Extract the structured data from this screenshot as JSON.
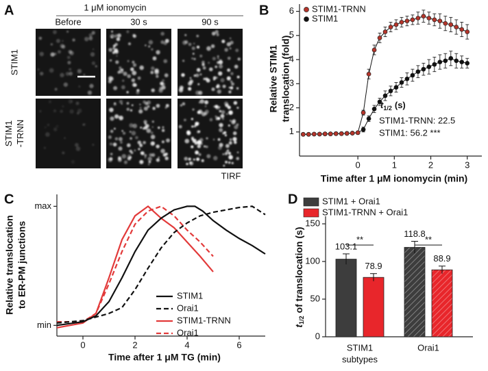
{
  "panel_a": {
    "label": "A",
    "title": "1 μM ionomycin",
    "columns": [
      "Before",
      "30 s",
      "90 s"
    ],
    "rows": [
      [
        "STIM1"
      ],
      [
        "STIM1",
        "-TRNN"
      ]
    ],
    "footer": "TIRF"
  },
  "chart_data": [
    {
      "type": "line",
      "panel": "B",
      "markers": true,
      "legend": "upper-left",
      "x": [
        -1.5,
        -1.35,
        -1.2,
        -1.05,
        -0.9,
        -0.75,
        -0.6,
        -0.45,
        -0.3,
        -0.15,
        0,
        0.15,
        0.3,
        0.45,
        0.6,
        0.75,
        0.9,
        1.05,
        1.2,
        1.35,
        1.5,
        1.65,
        1.8,
        1.95,
        2.1,
        2.25,
        2.4,
        2.55,
        2.7,
        2.85,
        3.0
      ],
      "series": [
        {
          "name": "STIM1-TRNN",
          "color": "#b5352b",
          "values": [
            0.9,
            0.9,
            0.91,
            0.91,
            0.92,
            0.92,
            0.93,
            0.93,
            0.94,
            0.95,
            0.97,
            1.8,
            3.4,
            4.4,
            4.9,
            5.15,
            5.35,
            5.45,
            5.55,
            5.6,
            5.65,
            5.72,
            5.8,
            5.72,
            5.65,
            5.6,
            5.5,
            5.45,
            5.35,
            5.25,
            5.15
          ],
          "errors": [
            0.05,
            0.05,
            0.05,
            0.05,
            0.05,
            0.05,
            0.05,
            0.05,
            0.05,
            0.05,
            0.05,
            0.1,
            0.2,
            0.2,
            0.2,
            0.2,
            0.2,
            0.2,
            0.2,
            0.2,
            0.2,
            0.25,
            0.25,
            0.25,
            0.25,
            0.3,
            0.3,
            0.3,
            0.3,
            0.3,
            0.3
          ]
        },
        {
          "name": "STIM1",
          "color": "#111111",
          "values": [
            0.9,
            0.9,
            0.91,
            0.91,
            0.92,
            0.92,
            0.93,
            0.93,
            0.94,
            0.95,
            0.97,
            1.1,
            1.55,
            1.95,
            2.25,
            2.5,
            2.7,
            2.85,
            3.05,
            3.2,
            3.35,
            3.5,
            3.6,
            3.7,
            3.8,
            3.9,
            3.95,
            4.05,
            3.95,
            3.9,
            3.85
          ],
          "errors": [
            0.05,
            0.05,
            0.05,
            0.05,
            0.05,
            0.05,
            0.05,
            0.05,
            0.05,
            0.05,
            0.05,
            0.1,
            0.12,
            0.15,
            0.15,
            0.2,
            0.2,
            0.2,
            0.2,
            0.25,
            0.25,
            0.25,
            0.25,
            0.3,
            0.3,
            0.3,
            0.3,
            0.3,
            0.3,
            0.25,
            0.2
          ]
        }
      ],
      "xlim": [
        -1.6,
        3.4
      ],
      "xticks": [
        0,
        1,
        2,
        3
      ],
      "ylim": [
        0,
        6.3
      ],
      "yticks": [
        1,
        2,
        3,
        4,
        5,
        6
      ],
      "ylabel": [
        "Relative STIM1",
        "translocation (fold)"
      ],
      "xlabel": "Time after 1 μM ionomycin (min)",
      "annotation": {
        "symbol": "t",
        "subscript": "1/2",
        "unit": "(s)",
        "lines": [
          {
            "text": "STIM1-TRNN: 22.5",
            "color": "#e8262b"
          },
          {
            "text": "STIM1: 56.2 ***",
            "color": "#222222"
          }
        ]
      }
    },
    {
      "type": "line",
      "panel": "C",
      "markers": false,
      "legend": "lower-right",
      "series": [
        {
          "name": "STIM1",
          "color": "#111111",
          "dash": false,
          "x": [
            -1,
            0,
            0.5,
            1,
            1.5,
            2,
            2.5,
            3,
            3.5,
            4,
            4.3,
            4.6,
            5,
            5.5,
            6,
            6.5,
            7
          ],
          "values": [
            0,
            0.03,
            0.08,
            0.2,
            0.4,
            0.62,
            0.8,
            0.9,
            0.97,
            1,
            1,
            0.96,
            0.88,
            0.8,
            0.73,
            0.67,
            0.6
          ]
        },
        {
          "name": "Orai1",
          "color": "#111111",
          "dash": true,
          "x": [
            -1,
            0,
            0.5,
            1,
            1.5,
            2,
            2.5,
            3,
            3.5,
            4,
            4.5,
            5,
            5.5,
            6,
            6.5,
            7
          ],
          "values": [
            0.02,
            0.04,
            0.07,
            0.1,
            0.15,
            0.3,
            0.48,
            0.65,
            0.78,
            0.86,
            0.92,
            0.95,
            0.97,
            0.99,
            1,
            0.93
          ]
        },
        {
          "name": "STIM1-TRNN",
          "color": "#e23a3a",
          "dash": false,
          "x": [
            -1,
            0,
            0.5,
            1,
            1.5,
            2,
            2.5,
            3,
            3.5,
            4,
            4.5,
            5
          ],
          "values": [
            -0.02,
            0.02,
            0.1,
            0.4,
            0.72,
            0.92,
            1,
            0.9,
            0.82,
            0.7,
            0.58,
            0.45
          ]
        },
        {
          "name": "Orai1",
          "color": "#e23a3a",
          "dash": true,
          "x": [
            -1,
            0,
            0.5,
            1,
            1.5,
            2,
            2.5,
            3,
            3.5,
            4,
            4.5,
            5
          ],
          "values": [
            0.03,
            0.03,
            0.1,
            0.35,
            0.62,
            0.85,
            0.96,
            1,
            0.92,
            0.8,
            0.7,
            0.58
          ]
        }
      ],
      "xlim": [
        -1,
        7
      ],
      "xticks": [
        0,
        2,
        4,
        6
      ],
      "ylim": [
        -0.09,
        1.1
      ],
      "yticks": [
        {
          "value": 0,
          "label": "min"
        },
        {
          "value": 1,
          "label": "max"
        }
      ],
      "ylabel": [
        "Relative translocation",
        "to ER-PM junctions"
      ],
      "xlabel": "Time after 1 μM TG (min)"
    },
    {
      "type": "bar",
      "panel": "D",
      "legend": "above",
      "categories": [
        [
          "STIM1",
          "subtypes"
        ],
        [
          "Orai1"
        ]
      ],
      "hatch": [
        false,
        true
      ],
      "series": [
        {
          "name": "STIM1 + Orai1",
          "color": "#3d3d3d",
          "values": [
            103.1,
            118.8
          ],
          "errors": [
            7,
            8
          ]
        },
        {
          "name": "STIM1-TRNN + Orai1",
          "color": "#e8262b",
          "values": [
            78.9,
            88.9
          ],
          "errors": [
            5,
            5
          ]
        }
      ],
      "significance": [
        "**",
        "**"
      ],
      "ylim": [
        0,
        160
      ],
      "yticks": [
        0,
        50,
        100,
        150
      ],
      "ylabel": {
        "symbol": "t",
        "subscript": "1/2",
        "text": "of translocation (s)"
      }
    }
  ]
}
